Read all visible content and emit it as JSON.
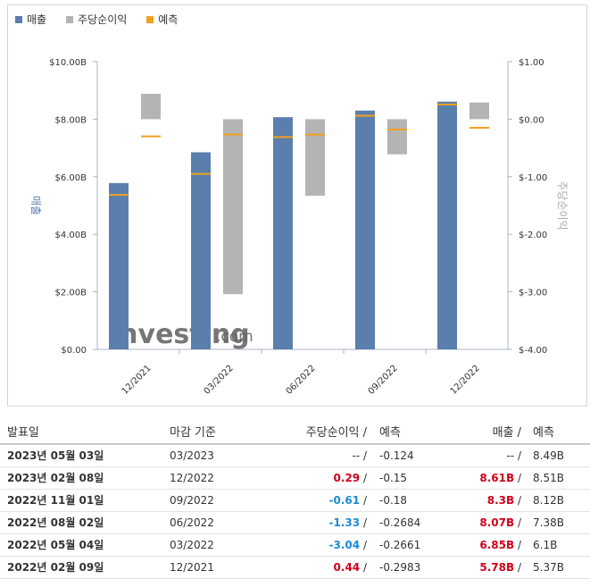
{
  "legend": {
    "revenue": "매출",
    "eps": "주당순이익",
    "forecast": "예측"
  },
  "colors": {
    "revenue": "#5b7fad",
    "eps": "#b4b4b4",
    "forecast": "#f0a020",
    "positive": "#d0001c",
    "negative": "#1a8bd6"
  },
  "watermark": {
    "brand": "Investing",
    "suffix": ".com"
  },
  "chart_data": {
    "type": "bar",
    "categories": [
      "12/2021",
      "03/2022",
      "06/2022",
      "09/2022",
      "12/2022"
    ],
    "ylabel_left": "매출",
    "ylabel_right": "주당순이익",
    "left_axis": {
      "min": 0,
      "max": 10,
      "ticks": [
        "$0.00",
        "$2.00B",
        "$4.00B",
        "$6.00B",
        "$8.00B",
        "$10.00B"
      ]
    },
    "right_axis": {
      "min": -4,
      "max": 1,
      "ticks": [
        "$-4.00",
        "$-3.00",
        "$-2.00",
        "$-1.00",
        "$0.00",
        "$1.00"
      ]
    },
    "series": [
      {
        "name": "매출",
        "axis": "left",
        "values": [
          5.78,
          6.85,
          8.07,
          8.3,
          8.61
        ],
        "forecast": [
          5.37,
          6.1,
          7.38,
          8.12,
          8.51
        ]
      },
      {
        "name": "주당순이익",
        "axis": "right",
        "values": [
          0.44,
          -3.04,
          -1.33,
          -0.61,
          0.29
        ],
        "forecast": [
          -0.2983,
          -0.2661,
          -0.2684,
          -0.18,
          -0.15
        ]
      }
    ]
  },
  "table": {
    "headers": {
      "date": "발표일",
      "period": "마감 기준",
      "eps": "주당순이익 /",
      "eps_forecast": "예측",
      "revenue": "매출 /",
      "revenue_forecast": "예측"
    },
    "rows": [
      {
        "date": "2023년 05월 03일",
        "period": "03/2023",
        "eps": "--",
        "eps_sign": "neu",
        "eps_forecast": "-0.124",
        "revenue": "--",
        "rev_sign": "neu",
        "revenue_forecast": "8.49B"
      },
      {
        "date": "2023년 02월 08일",
        "period": "12/2022",
        "eps": "0.29",
        "eps_sign": "pos",
        "eps_forecast": "-0.15",
        "revenue": "8.61B",
        "rev_sign": "pos",
        "revenue_forecast": "8.51B"
      },
      {
        "date": "2022년 11월 01일",
        "period": "09/2022",
        "eps": "-0.61",
        "eps_sign": "neg",
        "eps_forecast": "-0.18",
        "revenue": "8.3B",
        "rev_sign": "pos",
        "revenue_forecast": "8.12B"
      },
      {
        "date": "2022년 08월 02일",
        "period": "06/2022",
        "eps": "-1.33",
        "eps_sign": "neg",
        "eps_forecast": "-0.2684",
        "revenue": "8.07B",
        "rev_sign": "pos",
        "revenue_forecast": "7.38B"
      },
      {
        "date": "2022년 05월 04일",
        "period": "03/2022",
        "eps": "-3.04",
        "eps_sign": "neg",
        "eps_forecast": "-0.2661",
        "revenue": "6.85B",
        "rev_sign": "pos",
        "revenue_forecast": "6.1B"
      },
      {
        "date": "2022년 02월 09일",
        "period": "12/2021",
        "eps": "0.44",
        "eps_sign": "pos",
        "eps_forecast": "-0.2983",
        "revenue": "5.78B",
        "rev_sign": "pos",
        "revenue_forecast": "5.37B"
      }
    ]
  }
}
